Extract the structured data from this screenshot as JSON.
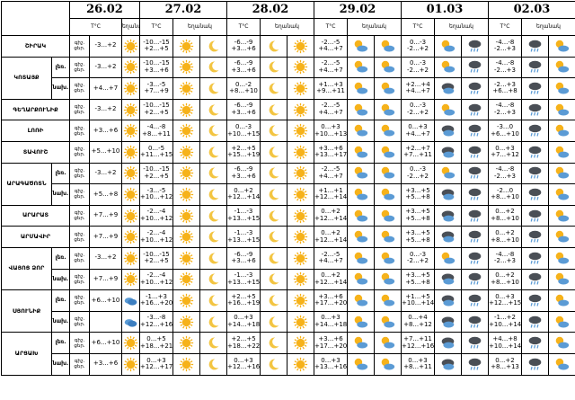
{
  "dates": [
    "26.02",
    "27.02",
    "28.02",
    "29.02",
    "01.03",
    "02.03"
  ],
  "labels": {
    "temp": "T°C",
    "weather": "եղանակ",
    "night": "գիշ.",
    "day": "ցեր."
  },
  "rows": [
    {
      "region": "ՇԻՐԱԿ",
      "part": "",
      "span": 1,
      "first_night": "-3...+2",
      "first_day": "",
      "first_icon": "sun",
      "cells": [
        [
          "-10...-15",
          "+2...+5",
          "sun",
          "moon"
        ],
        [
          "-6...-9",
          "+3...+6",
          "moon",
          "sun"
        ],
        [
          "-2...-5",
          "+4...+7",
          "suncloud",
          "suncloud"
        ],
        [
          "0...-3",
          "-2...+2",
          "suncloud",
          "rain"
        ],
        [
          "-4...-8",
          "-2...+3",
          "rain",
          "suncloud"
        ]
      ]
    },
    {
      "region": "ԿՈՏԱՅՔ",
      "part": "լեռ.",
      "span": 2,
      "first_night": "-3...+2",
      "first_day": "",
      "first_icon": "sun",
      "cells": [
        [
          "-10...-15",
          "+3...+6",
          "sun",
          "moon"
        ],
        [
          "-6...-9",
          "+3...+6",
          "moon",
          "sun"
        ],
        [
          "-2...-5",
          "+4...+7",
          "suncloud",
          "suncloud"
        ],
        [
          "0...-3",
          "-2...+2",
          "suncloud",
          "rain"
        ],
        [
          "-4...-8",
          "-2...+3",
          "rain",
          "suncloud"
        ]
      ]
    },
    {
      "region": "",
      "part": "նախ.",
      "span": 0,
      "first_night": "",
      "first_day": "+4...+7",
      "first_icon": "sun",
      "cells": [
        [
          "-3...-5",
          "+7...+9",
          "sun",
          "moon"
        ],
        [
          "0...-2",
          "+8...+10",
          "moon",
          "sun"
        ],
        [
          "+1...+3",
          "+9...+11",
          "suncloud",
          "suncloud"
        ],
        [
          "+2...+4",
          "+4...+7",
          "darkcloud",
          "rain"
        ],
        [
          "-2...+3",
          "+6...+8",
          "rain",
          "suncloud"
        ]
      ]
    },
    {
      "region": "ԳԵՂԱՐՔՈՒՆԻՔ",
      "part": "",
      "span": 1,
      "first_night": "-3...+2",
      "first_day": "",
      "first_icon": "sun",
      "cells": [
        [
          "-10...-15",
          "+2...+5",
          "sun",
          "moon"
        ],
        [
          "-6...-9",
          "+3...+6",
          "moon",
          "sun"
        ],
        [
          "-2...-5",
          "+4...+7",
          "suncloud",
          "suncloud"
        ],
        [
          "0...-3",
          "-2...+2",
          "suncloud",
          "rain"
        ],
        [
          "-4...-8",
          "-2...+3",
          "rain",
          "suncloud"
        ]
      ]
    },
    {
      "region": "ԼՈՌԻ",
      "part": "",
      "span": 1,
      "first_night": "",
      "first_day": "+3...+6",
      "first_icon": "sun",
      "cells": [
        [
          "-4...-8",
          "+8...+11",
          "sun",
          "moon"
        ],
        [
          "0...-3",
          "+10...+15",
          "moon",
          "sun"
        ],
        [
          "0...+3",
          "+10...+13",
          "suncloud",
          "suncloud"
        ],
        [
          "0...+3",
          "+4...+7",
          "darkcloud",
          "rain"
        ],
        [
          "-3...0",
          "+6...+10",
          "rain",
          "suncloud"
        ]
      ]
    },
    {
      "region": "ՏԱՎՈՒՇ",
      "part": "",
      "span": 1,
      "first_night": "",
      "first_day": "+5...+10",
      "first_icon": "sun",
      "cells": [
        [
          "0...-5",
          "+11...+15",
          "sun",
          "moon"
        ],
        [
          "+2...+5",
          "+15...+19",
          "moon",
          "sun"
        ],
        [
          "+3...+6",
          "+13...+17",
          "suncloud",
          "suncloud"
        ],
        [
          "+2...+7",
          "+7...+11",
          "darkcloud",
          "rain"
        ],
        [
          "0...+3",
          "+7...+12",
          "rain",
          "suncloud"
        ]
      ]
    },
    {
      "region": "ԱՐԱԳԱԾՈՏՆ",
      "part": "լեռ.",
      "span": 2,
      "first_night": "-3...+2",
      "first_day": "",
      "first_icon": "sun",
      "cells": [
        [
          "-10...-15",
          "+2...+5",
          "sun",
          "moon"
        ],
        [
          "-6...-9",
          "+3...+6",
          "moon",
          "sun"
        ],
        [
          "-2...-5",
          "+4...+7",
          "suncloud",
          "suncloud"
        ],
        [
          "0...-3",
          "-2...+2",
          "suncloud",
          "rain"
        ],
        [
          "-4...-8",
          "-2...+3",
          "rain",
          "suncloud"
        ]
      ]
    },
    {
      "region": "",
      "part": "նախ.",
      "span": 0,
      "first_night": "",
      "first_day": "+5...+8",
      "first_icon": "sun",
      "cells": [
        [
          "-3...-5",
          "+10...+12",
          "sun",
          "moon"
        ],
        [
          "0...+2",
          "+12...+14",
          "moon",
          "sun"
        ],
        [
          "+1...+1",
          "+12...+14",
          "suncloud",
          "suncloud"
        ],
        [
          "+3...+5",
          "+5...+8",
          "darkcloud",
          "rain"
        ],
        [
          "-2...0",
          "+8...+10",
          "rain",
          "suncloud"
        ]
      ]
    },
    {
      "region": "ԱՐԱՐԱՏ",
      "part": "",
      "span": 1,
      "first_night": "",
      "first_day": "+7...+9",
      "first_icon": "sun",
      "cells": [
        [
          "-2...-4",
          "+10...+12",
          "sun",
          "moon"
        ],
        [
          "-1...-3",
          "+13...+15",
          "moon",
          "sun"
        ],
        [
          "0...+2",
          "+12...+14",
          "suncloud",
          "suncloud"
        ],
        [
          "+3...+5",
          "+5...+8",
          "darkcloud",
          "rain"
        ],
        [
          "0...+2",
          "+8...+10",
          "rain",
          "suncloud"
        ]
      ]
    },
    {
      "region": "ԱՐՄԱՎԻՐ",
      "part": "",
      "span": 1,
      "first_night": "",
      "first_day": "+7...+9",
      "first_icon": "sun",
      "cells": [
        [
          "-2...-4",
          "+10...+12",
          "sun",
          "moon"
        ],
        [
          "-1...-3",
          "+13...+15",
          "moon",
          "sun"
        ],
        [
          "0...+2",
          "+12...+14",
          "suncloud",
          "suncloud"
        ],
        [
          "+3...+5",
          "+5...+8",
          "darkcloud",
          "rain"
        ],
        [
          "0...+2",
          "+8...+10",
          "rain",
          "suncloud"
        ]
      ]
    },
    {
      "region": "ՎԱՅՈՑ ՁՈՐ",
      "part": "լեռ.",
      "span": 2,
      "first_night": "-3...+2",
      "first_day": "",
      "first_icon": "sun",
      "cells": [
        [
          "-10...-15",
          "+2...+5",
          "sun",
          "moon"
        ],
        [
          "-6...-9",
          "+3...+6",
          "moon",
          "sun"
        ],
        [
          "-2...-5",
          "+4...+7",
          "suncloud",
          "suncloud"
        ],
        [
          "0...-3",
          "-2...+2",
          "suncloud",
          "rain"
        ],
        [
          "-4...-8",
          "-2...+3",
          "rain",
          "suncloud"
        ]
      ]
    },
    {
      "region": "",
      "part": "նախ.",
      "span": 0,
      "first_night": "",
      "first_day": "+7...+9",
      "first_icon": "sun",
      "cells": [
        [
          "-2...-4",
          "+10...+12",
          "sun",
          "moon"
        ],
        [
          "-1...-3",
          "+13...+15",
          "moon",
          "sun"
        ],
        [
          "0...+2",
          "+12...+14",
          "suncloud",
          "suncloud"
        ],
        [
          "+3...+5",
          "+5...+8",
          "darkcloud",
          "rain"
        ],
        [
          "0...+2",
          "+8...+10",
          "rain",
          "suncloud"
        ]
      ]
    },
    {
      "region": "ՍՅՈՒՆԻՔ",
      "part": "լեռ.",
      "span": 2,
      "first_night": "",
      "first_day": "+6...+10",
      "first_icon": "cloud",
      "cells": [
        [
          "-1...+3",
          "+16...+20",
          "sun",
          "moon"
        ],
        [
          "+2...+5",
          "+16...+19",
          "moon",
          "sun"
        ],
        [
          "+3...+6",
          "+17...+20",
          "suncloud",
          "suncloud"
        ],
        [
          "+1...+5",
          "+10...+14",
          "darkcloud",
          "rain"
        ],
        [
          "0...+3",
          "+12...+15",
          "rain",
          "suncloud"
        ]
      ]
    },
    {
      "region": "",
      "part": "նախ.",
      "span": 0,
      "first_night": "",
      "first_day": "",
      "first_icon": "cloud",
      "cells": [
        [
          "-3...-8",
          "+12...+16",
          "sun",
          "moon"
        ],
        [
          "0...+3",
          "+14...+18",
          "moon",
          "sun"
        ],
        [
          "0...+3",
          "+14...+18",
          "suncloud",
          "suncloud"
        ],
        [
          "0...+4",
          "+8...+12",
          "darkcloud",
          "rain"
        ],
        [
          "-1...+2",
          "+10...+14",
          "rain",
          "suncloud"
        ]
      ]
    },
    {
      "region": "ԱՐՑԱԽ",
      "part": "լեռ.",
      "span": 2,
      "first_night": "",
      "first_day": "+6...+10",
      "first_icon": "sun",
      "cells": [
        [
          "0...+5",
          "+18...+21",
          "sun",
          "moon"
        ],
        [
          "+2...+5",
          "+18...+22",
          "moon",
          "sun"
        ],
        [
          "+3...+6",
          "+17...+20",
          "suncloud",
          "suncloud"
        ],
        [
          "+7...+11",
          "+12...+16",
          "darkcloud",
          "rain"
        ],
        [
          "+4...+8",
          "+10...+14",
          "rain",
          "suncloud"
        ]
      ]
    },
    {
      "region": "",
      "part": "նախ.",
      "span": 0,
      "first_night": "",
      "first_day": "+3...+6",
      "first_icon": "sun",
      "cells": [
        [
          "0...+3",
          "+12...+17",
          "sun",
          "moon"
        ],
        [
          "0...+3",
          "+12...+16",
          "moon",
          "sun"
        ],
        [
          "0...+3",
          "+13...+16",
          "suncloud",
          "suncloud"
        ],
        [
          "0...+3",
          "+8...+11",
          "darkcloud",
          "rain"
        ],
        [
          "0...+2",
          "+8...+13",
          "rain",
          "suncloud"
        ]
      ]
    }
  ],
  "colors": {
    "sun": "#f6b21a",
    "moon": "#f3c542",
    "cloud": "#5b9bd5",
    "dark": "#4a4f56"
  }
}
